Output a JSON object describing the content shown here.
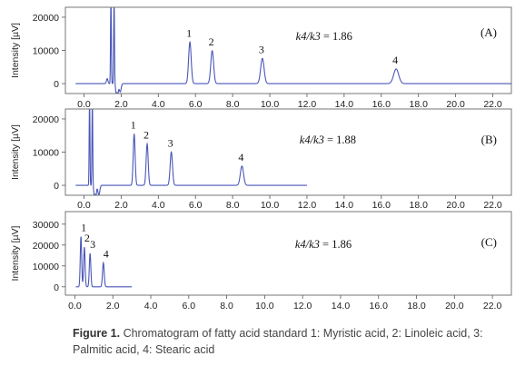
{
  "chart_data": [
    {
      "type": "line",
      "panel_label": "(A)",
      "ylabel": "Intensity [µV]",
      "xlim": [
        -1.0,
        23.0
      ],
      "x_ticks": [
        "0.0",
        "2.0",
        "4.0",
        "6.0",
        "8.0",
        "10.0",
        "12.0",
        "14.0",
        "16.0",
        "18.0",
        "20.0",
        "22.0"
      ],
      "y_ticks": [
        "20000",
        "10000",
        "0"
      ],
      "ylim": [
        -3000,
        23000
      ],
      "ratio_label": "k4/k3",
      "ratio_value": "= 1.86",
      "trace_end": 23.0,
      "solvent": [
        {
          "rt": 1.25,
          "h": 1500,
          "w": 0.04
        },
        {
          "rt": 1.45,
          "h": 28000,
          "w": 0.02
        },
        {
          "rt": 1.62,
          "h": 28000,
          "w": 0.02
        },
        {
          "rt": 1.78,
          "h": -6000,
          "w": 0.05
        },
        {
          "rt": 1.95,
          "h": -2500,
          "w": 0.05
        }
      ],
      "peaks": [
        {
          "label": "1",
          "rt": 5.7,
          "height": 12500
        },
        {
          "label": "2",
          "rt": 6.9,
          "height": 9900
        },
        {
          "label": "3",
          "rt": 9.6,
          "height": 7600
        },
        {
          "label": "4",
          "rt": 16.8,
          "height": 4400
        }
      ]
    },
    {
      "type": "line",
      "panel_label": "(B)",
      "ylabel": "Intensity [µV]",
      "xlim": [
        -1.0,
        23.0
      ],
      "x_ticks": [
        "0.0",
        "2.0",
        "4.0",
        "6.0",
        "8.0",
        "10.0",
        "12.0",
        "14.0",
        "16.0",
        "18.0",
        "20.0",
        "22.0"
      ],
      "y_ticks": [
        "20000",
        "10000",
        "0"
      ],
      "ylim": [
        -3000,
        23000
      ],
      "ratio_label": "k4/k3",
      "ratio_value": "= 1.88",
      "trace_end": 12.0,
      "solvent": [
        {
          "rt": 0.3,
          "h": 28000,
          "w": 0.02
        },
        {
          "rt": 0.45,
          "h": 28000,
          "w": 0.02
        },
        {
          "rt": 0.6,
          "h": -6000,
          "w": 0.05
        },
        {
          "rt": 0.8,
          "h": -3000,
          "w": 0.05
        }
      ],
      "peaks": [
        {
          "label": "1",
          "rt": 2.7,
          "height": 15500
        },
        {
          "label": "2",
          "rt": 3.4,
          "height": 12500
        },
        {
          "label": "3",
          "rt": 4.7,
          "height": 10000
        },
        {
          "label": "4",
          "rt": 8.5,
          "height": 5800
        }
      ]
    },
    {
      "type": "line",
      "panel_label": "(C)",
      "ylabel": "Intensity [µV]",
      "xlim": [
        -0.5,
        23.0
      ],
      "x_ticks": [
        "0.0",
        "2.0",
        "4.0",
        "6.0",
        "8.0",
        "10.0",
        "12.0",
        "14.0",
        "16.0",
        "18.0",
        "20.0",
        "22.0"
      ],
      "y_ticks": [
        "30000",
        "20000",
        "10000",
        "0"
      ],
      "ylim": [
        -4000,
        36000
      ],
      "ratio_label": "k4/k3",
      "ratio_value": "= 1.86",
      "trace_end": 3.0,
      "solvent": [
        {
          "rt": -0.35,
          "h": 42000,
          "w": 0.03
        },
        {
          "rt": -0.15,
          "h": 37000,
          "w": 0.03
        }
      ],
      "peaks": [
        {
          "label": "1",
          "rt": 0.32,
          "height": 24000
        },
        {
          "label": "2",
          "rt": 0.5,
          "height": 19000
        },
        {
          "label": "3",
          "rt": 0.8,
          "height": 16000
        },
        {
          "label": "4",
          "rt": 1.5,
          "height": 11500
        }
      ]
    }
  ],
  "caption": {
    "bold": "Figure 1.",
    "text": " Chromatogram of fatty acid standard 1: Myristic acid, 2: Linoleic acid, 3: Palmitic acid, 4: Stearic acid"
  }
}
